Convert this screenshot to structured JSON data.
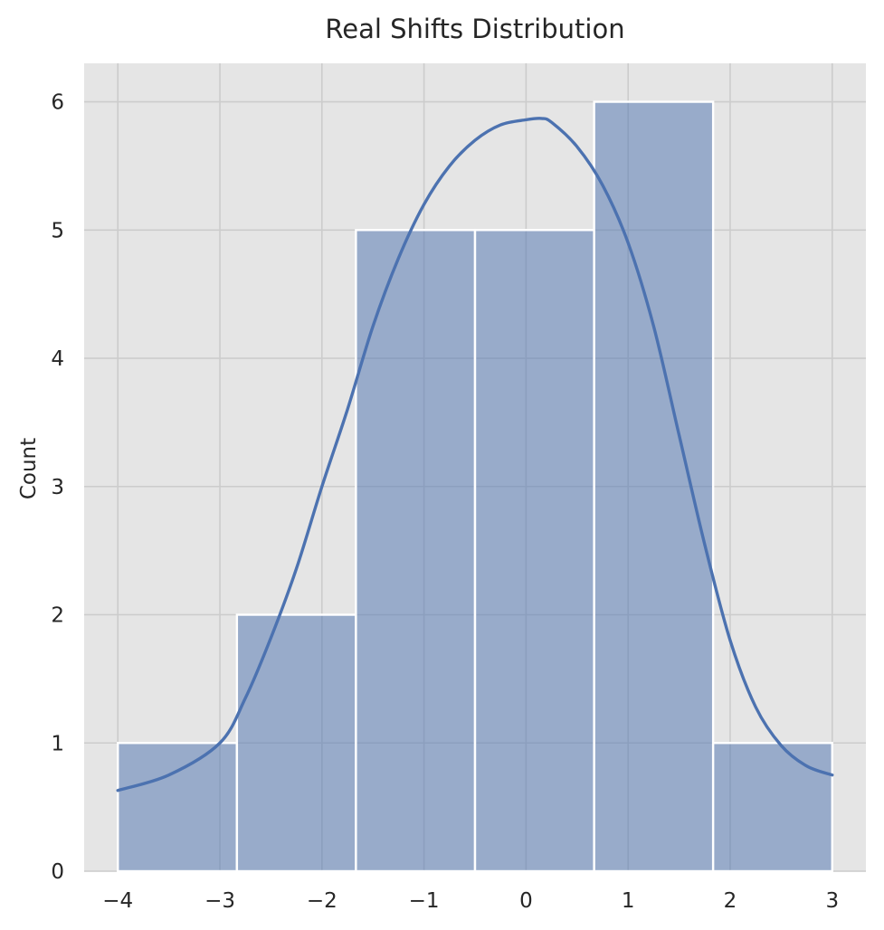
{
  "chart_data": {
    "type": "bar",
    "title": "Real Shifts Distribution",
    "xlabel": "",
    "ylabel": "Count",
    "xlim": [
      -4.33,
      3.33
    ],
    "ylim": [
      0,
      6.3
    ],
    "x_ticks": [
      -4,
      -3,
      -2,
      -1,
      0,
      1,
      2,
      3
    ],
    "x_tick_labels": [
      "−4",
      "−3",
      "−2",
      "−1",
      "0",
      "1",
      "2",
      "3"
    ],
    "y_ticks": [
      0,
      1,
      2,
      3,
      4,
      5,
      6
    ],
    "y_tick_labels": [
      "0",
      "1",
      "2",
      "3",
      "4",
      "5",
      "6"
    ],
    "grid": true,
    "bins": [
      {
        "x0": -4.0,
        "x1": -2.833,
        "count": 1
      },
      {
        "x0": -2.833,
        "x1": -1.667,
        "count": 2
      },
      {
        "x0": -1.667,
        "x1": -0.5,
        "count": 5
      },
      {
        "x0": -0.5,
        "x1": 0.667,
        "count": 5
      },
      {
        "x0": 0.667,
        "x1": 1.833,
        "count": 6
      },
      {
        "x0": 1.833,
        "x1": 3.0,
        "count": 1
      }
    ],
    "kde": {
      "x": [
        -4.0,
        -3.5,
        -3.0,
        -2.75,
        -2.5,
        -2.25,
        -2.0,
        -1.75,
        -1.5,
        -1.25,
        -1.0,
        -0.75,
        -0.5,
        -0.25,
        0.0,
        0.15,
        0.25,
        0.5,
        0.75,
        1.0,
        1.25,
        1.5,
        1.75,
        2.0,
        2.25,
        2.5,
        2.75,
        3.0
      ],
      "y": [
        0.63,
        0.75,
        1.0,
        1.35,
        1.82,
        2.36,
        3.0,
        3.6,
        4.25,
        4.78,
        5.2,
        5.5,
        5.7,
        5.82,
        5.86,
        5.87,
        5.84,
        5.65,
        5.35,
        4.9,
        4.25,
        3.4,
        2.55,
        1.8,
        1.28,
        0.98,
        0.82,
        0.75
      ]
    },
    "colors": {
      "bar_fill": "#4c72b0",
      "bar_opacity": 0.5,
      "bar_edge": "#ffffff",
      "kde_line": "#4c72b0",
      "axes_bg": "#e5e5e5",
      "grid": "#cccccc"
    }
  }
}
